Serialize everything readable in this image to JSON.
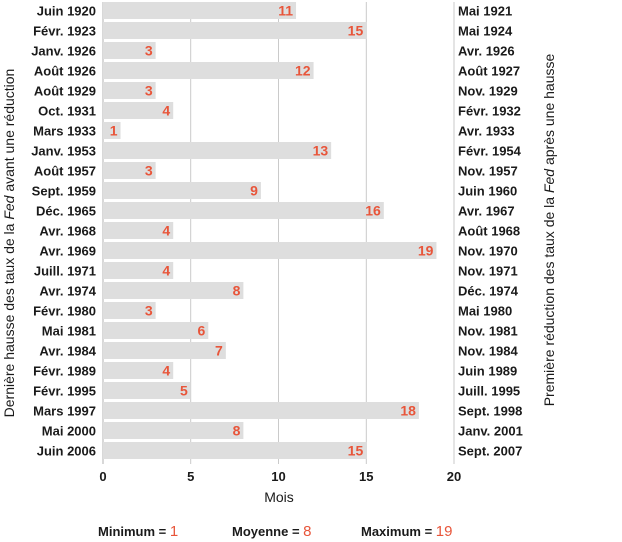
{
  "chart_data": {
    "type": "bar",
    "orientation": "horizontal",
    "left_axis_title_pre": "Dernière hausse des taux de la ",
    "left_axis_title_em": "Fed",
    "left_axis_title_post": " avant une réduction",
    "right_axis_title_pre": "Première réduction des taux de la ",
    "right_axis_title_em": "Fed",
    "right_axis_title_post": " après une hausse",
    "xlabel": "Mois",
    "xlim": [
      0,
      20
    ],
    "xticks": [
      "0",
      "5",
      "10",
      "15",
      "20"
    ],
    "grid": "vertical",
    "bars": [
      {
        "start": "Juin 1920",
        "end": "Mai 1921",
        "value": 11
      },
      {
        "start": "Févr. 1923",
        "end": "Mai 1924",
        "value": 15
      },
      {
        "start": "Janv. 1926",
        "end": "Avr. 1926",
        "value": 3
      },
      {
        "start": "Août 1926",
        "end": "Août 1927",
        "value": 12
      },
      {
        "start": "Août 1929",
        "end": "Nov. 1929",
        "value": 3
      },
      {
        "start": "Oct. 1931",
        "end": "Févr. 1932",
        "value": 4
      },
      {
        "start": "Mars 1933",
        "end": "Avr. 1933",
        "value": 1
      },
      {
        "start": "Janv. 1953",
        "end": "Févr. 1954",
        "value": 13
      },
      {
        "start": "Août 1957",
        "end": "Nov. 1957",
        "value": 3
      },
      {
        "start": "Sept. 1959",
        "end": "Juin 1960",
        "value": 9
      },
      {
        "start": "Déc. 1965",
        "end": "Avr. 1967",
        "value": 16
      },
      {
        "start": "Avr. 1968",
        "end": "Août 1968",
        "value": 4
      },
      {
        "start": "Avr. 1969",
        "end": "Nov. 1970",
        "value": 19
      },
      {
        "start": "Juill. 1971",
        "end": "Nov. 1971",
        "value": 4
      },
      {
        "start": "Avr. 1974",
        "end": "Déc. 1974",
        "value": 8
      },
      {
        "start": "Févr. 1980",
        "end": "Mai 1980",
        "value": 3
      },
      {
        "start": "Mai 1981",
        "end": "Nov. 1981",
        "value": 6
      },
      {
        "start": "Avr. 1984",
        "end": "Nov. 1984",
        "value": 7
      },
      {
        "start": "Févr. 1989",
        "end": "Juin 1989",
        "value": 4
      },
      {
        "start": "Févr. 1995",
        "end": "Juill. 1995",
        "value": 5
      },
      {
        "start": "Mars 1997",
        "end": "Sept. 1998",
        "value": 18
      },
      {
        "start": "Mai 2000",
        "end": "Janv. 2001",
        "value": 8
      },
      {
        "start": "Juin 2006",
        "end": "Sept. 2007",
        "value": 15
      }
    ],
    "stats": [
      {
        "label": "Minimum = ",
        "value": "1"
      },
      {
        "label": "Moyenne = ",
        "value": "8"
      },
      {
        "label": "Maximum = ",
        "value": "19"
      }
    ]
  },
  "colors": {
    "bar": "#dedede",
    "value_label": "#e8553a",
    "grid": "#bdbdbd",
    "text": "#1a1a1a"
  }
}
